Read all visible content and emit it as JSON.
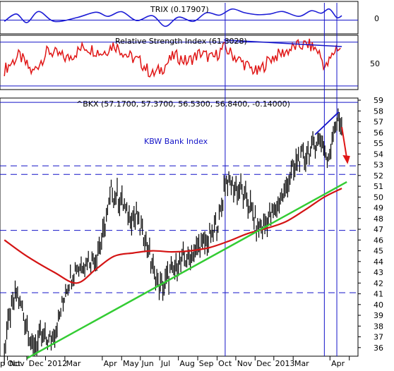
{
  "panels": {
    "trix": {
      "label": "TRIX (0.17907)",
      "ticks": [
        {
          "label": "0",
          "value": 0
        }
      ]
    },
    "rsi": {
      "label": "Relative Strength Index (61.8028)",
      "ticks": [
        {
          "label": "50",
          "value": 50
        }
      ]
    },
    "main": {
      "label": "^BKX (57.1700, 57.3700, 56.5300, 56.8400, -0.14000)",
      "annotation": "KBW Bank Index"
    }
  },
  "colors": {
    "trix": "#1c1cd6",
    "rsi": "#e01616",
    "price": "#000000",
    "ma": "#d41414",
    "trendline": "#33cc33",
    "reference": "#1414c8",
    "arrow": "#e01616"
  },
  "chart_data": [
    {
      "type": "line",
      "panel": "TRIX",
      "series": [
        {
          "name": "TRIX",
          "x": [
            "2011-09-26",
            "2011-10-15",
            "2011-11-01",
            "2011-11-20",
            "2011-12-15",
            "2012-01-20",
            "2012-02-20",
            "2012-03-10",
            "2012-04-01",
            "2012-04-25",
            "2012-05-20",
            "2012-06-10",
            "2012-07-01",
            "2012-07-25",
            "2012-08-15",
            "2012-09-05",
            "2012-09-25",
            "2012-10-15",
            "2012-11-05",
            "2012-11-25",
            "2012-12-15",
            "2013-01-10",
            "2013-01-30",
            "2013-02-15",
            "2013-02-28",
            "2013-03-12",
            "2013-03-20"
          ],
          "values": [
            -0.05,
            0.25,
            -0.1,
            0.35,
            -0.05,
            0.1,
            0.32,
            0.15,
            0.34,
            -0.02,
            0.18,
            -0.25,
            0.12,
            -0.05,
            0.3,
            0.2,
            0.45,
            0.3,
            0.22,
            0.25,
            0.35,
            0.15,
            0.38,
            0.28,
            0.45,
            0.1,
            0.18
          ]
        }
      ],
      "ylabel": "",
      "ylim": [
        -0.5,
        0.7
      ]
    },
    {
      "type": "line",
      "panel": "RSI",
      "series": [
        {
          "name": "Relative Strength Index",
          "x": [
            "2011-09-26",
            "2011-10-20",
            "2011-11-10",
            "2011-12-05",
            "2012-01-05",
            "2012-02-01",
            "2012-03-01",
            "2012-03-20",
            "2012-04-10",
            "2012-05-01",
            "2012-05-20",
            "2012-06-05",
            "2012-06-25",
            "2012-07-15",
            "2012-08-05",
            "2012-08-25",
            "2012-09-12",
            "2012-10-01",
            "2012-10-20",
            "2012-11-05",
            "2012-11-25",
            "2012-12-15",
            "2013-01-05",
            "2013-01-25",
            "2013-02-10",
            "2013-02-22",
            "2013-03-05",
            "2013-03-12",
            "2013-03-20"
          ],
          "values": [
            45,
            58,
            42,
            62,
            55,
            66,
            60,
            68,
            58,
            52,
            40,
            46,
            58,
            52,
            60,
            55,
            65,
            56,
            48,
            42,
            55,
            60,
            66,
            68,
            62,
            46,
            58,
            66,
            62
          ]
        }
      ],
      "ylabel": "",
      "ylim": [
        28,
        75
      ],
      "reference_lines": [
        70,
        30
      ],
      "annotations": [
        {
          "type": "trendline",
          "from": [
            "2012-09-12",
            72
          ],
          "to": [
            "2013-03-20",
            66
          ]
        }
      ]
    },
    {
      "type": "line",
      "panel": "^BKX",
      "title": "^BKX (57.1700, 57.3700, 56.5300, 56.8400, -0.14000)",
      "x_tick_labels": [
        "p Oct",
        "Nov",
        "Dec",
        "2012",
        "Mar",
        "Apr",
        "May",
        "Jun",
        "Jul",
        "Aug",
        "Sep",
        "Oct",
        "Nov",
        "Dec",
        "2013",
        "Mar",
        "Apr"
      ],
      "y_ticks": [
        36,
        37,
        38,
        39,
        40,
        41,
        42,
        43,
        44,
        45,
        46,
        47,
        48,
        49,
        50,
        51,
        52,
        53,
        54,
        55,
        56,
        57,
        58,
        59
      ],
      "ylim": [
        35.2,
        59.2
      ],
      "series": [
        {
          "name": "^BKX",
          "x": [
            "2011-09-26",
            "2011-10-05",
            "2011-10-15",
            "2011-10-28",
            "2011-11-10",
            "2011-11-25",
            "2011-12-05",
            "2011-12-20",
            "2012-01-05",
            "2012-01-20",
            "2012-02-05",
            "2012-02-20",
            "2012-03-05",
            "2012-03-15",
            "2012-03-27",
            "2012-04-10",
            "2012-04-25",
            "2012-05-10",
            "2012-05-25",
            "2012-06-04",
            "2012-06-20",
            "2012-07-05",
            "2012-07-20",
            "2012-08-05",
            "2012-08-20",
            "2012-09-05",
            "2012-09-14",
            "2012-09-28",
            "2012-10-10",
            "2012-10-25",
            "2012-11-05",
            "2012-11-16",
            "2012-11-30",
            "2012-12-14",
            "2012-12-28",
            "2013-01-10",
            "2013-01-25",
            "2013-02-05",
            "2013-02-15",
            "2013-02-26",
            "2013-03-05",
            "2013-03-12",
            "2013-03-20"
          ],
          "values": [
            36,
            39,
            41,
            39,
            36,
            37,
            36.5,
            38,
            42,
            43.5,
            44,
            44.5,
            47,
            50.5,
            50,
            48.5,
            48,
            46,
            42.5,
            41.5,
            43,
            44,
            44.5,
            45.5,
            46,
            48,
            51.5,
            51,
            50.5,
            49,
            47,
            47.5,
            48.5,
            50,
            52,
            53.5,
            54,
            55,
            55.5,
            53,
            56,
            57.2,
            56.84
          ]
        },
        {
          "name": "Moving Average",
          "x": [
            "2011-09-26",
            "2011-11-01",
            "2011-12-15",
            "2012-01-20",
            "2012-02-20",
            "2012-03-20",
            "2012-04-20",
            "2012-05-20",
            "2012-06-20",
            "2012-07-20",
            "2012-08-20",
            "2012-09-20",
            "2012-10-20",
            "2012-11-20",
            "2012-12-20",
            "2013-01-20",
            "2013-02-20",
            "2013-03-20"
          ],
          "values": [
            46,
            44.5,
            43,
            42,
            43.3,
            44.5,
            44.8,
            45,
            44.9,
            45,
            45.3,
            45.9,
            46.6,
            47.1,
            47.7,
            48.8,
            50.0,
            50.8
          ]
        }
      ],
      "reference_lines": [
        {
          "y": 52.9
        },
        {
          "y": 52.1
        },
        {
          "y": 46.9
        },
        {
          "y": 41.1
        },
        {
          "y": 58.8
        }
      ],
      "vertical_lines": [
        "2012-09-14",
        "2013-02-20",
        "2013-03-12"
      ],
      "annotations": [
        {
          "type": "trendline",
          "from": [
            "2011-11-01",
            35
          ],
          "to": [
            "2013-03-28",
            51.4
          ]
        },
        {
          "type": "trendline",
          "from": [
            "2013-02-05",
            55.8
          ],
          "to": [
            "2013-03-15",
            57.9
          ]
        },
        {
          "type": "arrow",
          "from": [
            "2013-03-20",
            56.5
          ],
          "to": [
            "2013-03-28",
            53.2
          ]
        },
        {
          "type": "text",
          "text": "KBW Bank Index"
        }
      ]
    }
  ]
}
